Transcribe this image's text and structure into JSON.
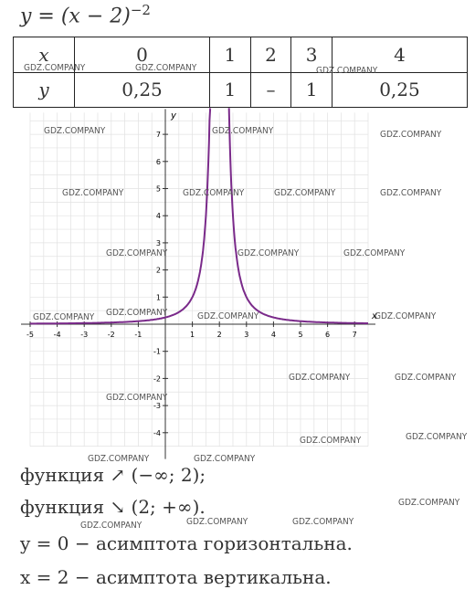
{
  "formula": {
    "base": "y = (x − 2)",
    "exponent": "−2"
  },
  "table": {
    "rows": [
      [
        "x",
        "0",
        "1",
        "2",
        "3",
        "4"
      ],
      [
        "y",
        "0,25",
        "1",
        "–",
        "1",
        "0,25"
      ]
    ]
  },
  "graph": {
    "x_label": "x",
    "y_label": "y",
    "xlim": [
      -5,
      7.5
    ],
    "ylim": [
      -4.5,
      7.8
    ],
    "xticks": [
      -5,
      -4,
      -3,
      -2,
      -1,
      1,
      2,
      3,
      4,
      5,
      6,
      7
    ],
    "yticks": [
      -4,
      -3,
      -2,
      -1,
      1,
      2,
      3,
      4,
      5,
      6,
      7
    ],
    "asymptote_x": 2,
    "color": "#7a2a8a"
  },
  "lines": [
    "функция ↗ (−∞; 2);",
    "функция ↘ (2; +∞).",
    "y = 0 − асимптота горизонтальна.",
    "x = 2 − асимптота вертикальна."
  ],
  "watermark": "GDZ.COMPANY"
}
